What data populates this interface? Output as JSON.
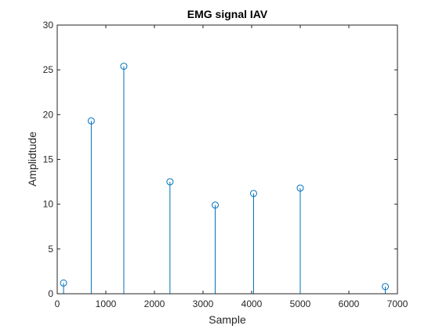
{
  "chart_data": {
    "type": "stem",
    "title": "EMG signal IAV",
    "xlabel": "Sample",
    "ylabel": "Amplidtude",
    "xlim": [
      0,
      7000
    ],
    "ylim": [
      0,
      30
    ],
    "xticks": [
      0,
      1000,
      2000,
      3000,
      4000,
      5000,
      6000,
      7000
    ],
    "yticks": [
      0,
      5,
      10,
      15,
      20,
      25,
      30
    ],
    "grid": false,
    "series": [
      {
        "x": [
          130,
          700,
          1370,
          2320,
          3250,
          4040,
          5000,
          6750
        ],
        "y": [
          1.2,
          19.3,
          25.4,
          12.5,
          9.9,
          11.2,
          11.8,
          0.8
        ]
      }
    ],
    "colors": {
      "stem": "#0072BD",
      "axes": "#262626",
      "background": "#ffffff"
    }
  }
}
